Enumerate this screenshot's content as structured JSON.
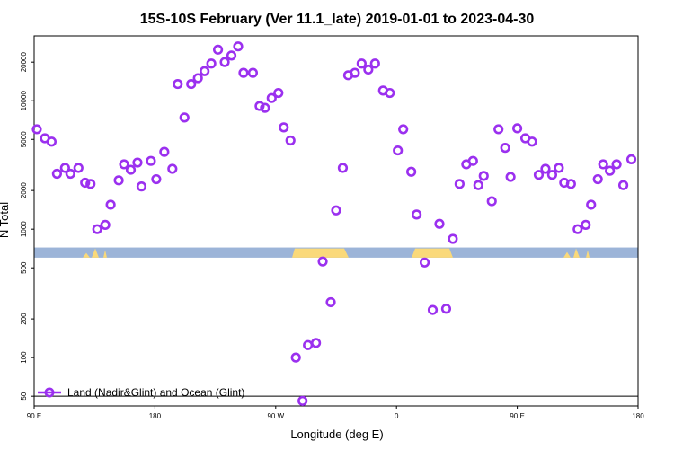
{
  "chart_data": {
    "type": "scatter",
    "title": "15S-10S February (Ver 11.1_late)   2019-01-01 to 2023-04-30",
    "xlabel": "Longitude (deg E)",
    "ylabel": "N Total",
    "x_ticks": [
      {
        "value": 90,
        "label": "90 E"
      },
      {
        "value": 180,
        "label": "180"
      },
      {
        "value": 270,
        "label": "90 W"
      },
      {
        "value": 360,
        "label": "0"
      },
      {
        "value": 450,
        "label": "90 E"
      },
      {
        "value": 540,
        "label": "180"
      }
    ],
    "y_ticks": [
      {
        "value": 50,
        "label": "50"
      },
      {
        "value": 100,
        "label": "100"
      },
      {
        "value": 200,
        "label": "200"
      },
      {
        "value": 500,
        "label": "500"
      },
      {
        "value": 1000,
        "label": "1000"
      },
      {
        "value": 2000,
        "label": "2000"
      },
      {
        "value": 5000,
        "label": "5000"
      },
      {
        "value": 10000,
        "label": "10000"
      },
      {
        "value": 20000,
        "label": "20000"
      }
    ],
    "xlim": [
      90,
      540
    ],
    "ylim": [
      42,
      32000
    ],
    "y_scale": "log",
    "grid": false,
    "legend_position": "bottom-left",
    "series": [
      {
        "name": "Land (Nadir&Glint) and Ocean (Glint)",
        "color": "#9b30ef",
        "marker": "open-circle",
        "points": [
          [
            92,
            6000
          ],
          [
            98,
            5100
          ],
          [
            103,
            4800
          ],
          [
            107,
            2700
          ],
          [
            113,
            3000
          ],
          [
            117,
            2700
          ],
          [
            123,
            3000
          ],
          [
            128,
            2300
          ],
          [
            132,
            2250
          ],
          [
            137,
            1000
          ],
          [
            143,
            1080
          ],
          [
            147,
            1550
          ],
          [
            153,
            2400
          ],
          [
            157,
            3200
          ],
          [
            162,
            2900
          ],
          [
            167,
            3300
          ],
          [
            170,
            2150
          ],
          [
            177,
            3400
          ],
          [
            181,
            2450
          ],
          [
            187,
            4000
          ],
          [
            193,
            2950
          ],
          [
            197,
            13500
          ],
          [
            202,
            7400
          ],
          [
            207,
            13500
          ],
          [
            212,
            15000
          ],
          [
            217,
            17000
          ],
          [
            222,
            19500
          ],
          [
            227,
            25000
          ],
          [
            232,
            20000
          ],
          [
            237,
            22500
          ],
          [
            242,
            26500
          ],
          [
            246,
            16500
          ],
          [
            253,
            16500
          ],
          [
            258,
            9100
          ],
          [
            262,
            8800
          ],
          [
            267,
            10500
          ],
          [
            272,
            11500
          ],
          [
            276,
            6200
          ],
          [
            281,
            4900
          ],
          [
            285,
            100
          ],
          [
            290,
            46
          ],
          [
            294,
            125
          ],
          [
            300,
            130
          ],
          [
            305,
            560
          ],
          [
            311,
            270
          ],
          [
            315,
            1400
          ],
          [
            320,
            3000
          ],
          [
            324,
            15800
          ],
          [
            329,
            16500
          ],
          [
            334,
            19500
          ],
          [
            339,
            17500
          ],
          [
            344,
            19500
          ],
          [
            350,
            12000
          ],
          [
            355,
            11500
          ],
          [
            361,
            4100
          ],
          [
            365,
            6000
          ],
          [
            371,
            2800
          ],
          [
            375,
            1300
          ],
          [
            381,
            550
          ],
          [
            387,
            235
          ],
          [
            392,
            1100
          ],
          [
            397,
            240
          ],
          [
            402,
            840
          ],
          [
            407,
            2250
          ],
          [
            412,
            3200
          ],
          [
            417,
            3400
          ],
          [
            421,
            2200
          ],
          [
            425,
            2600
          ],
          [
            431,
            1650
          ],
          [
            436,
            6000
          ],
          [
            441,
            4300
          ],
          [
            445,
            2550
          ],
          [
            450,
            6100
          ],
          [
            456,
            5100
          ],
          [
            461,
            4800
          ],
          [
            466,
            2650
          ],
          [
            471,
            2950
          ],
          [
            476,
            2650
          ],
          [
            481,
            3000
          ],
          [
            485,
            2300
          ],
          [
            490,
            2250
          ],
          [
            495,
            1000
          ],
          [
            501,
            1080
          ],
          [
            505,
            1550
          ],
          [
            510,
            2450
          ],
          [
            514,
            3200
          ],
          [
            519,
            2850
          ],
          [
            524,
            3200
          ],
          [
            529,
            2200
          ],
          [
            535,
            3500
          ]
        ]
      }
    ],
    "band": {
      "y_range": [
        600,
        720
      ],
      "ocean_color": "#9cb4d8",
      "land_color": "#fad97a"
    },
    "baseline": 50
  }
}
